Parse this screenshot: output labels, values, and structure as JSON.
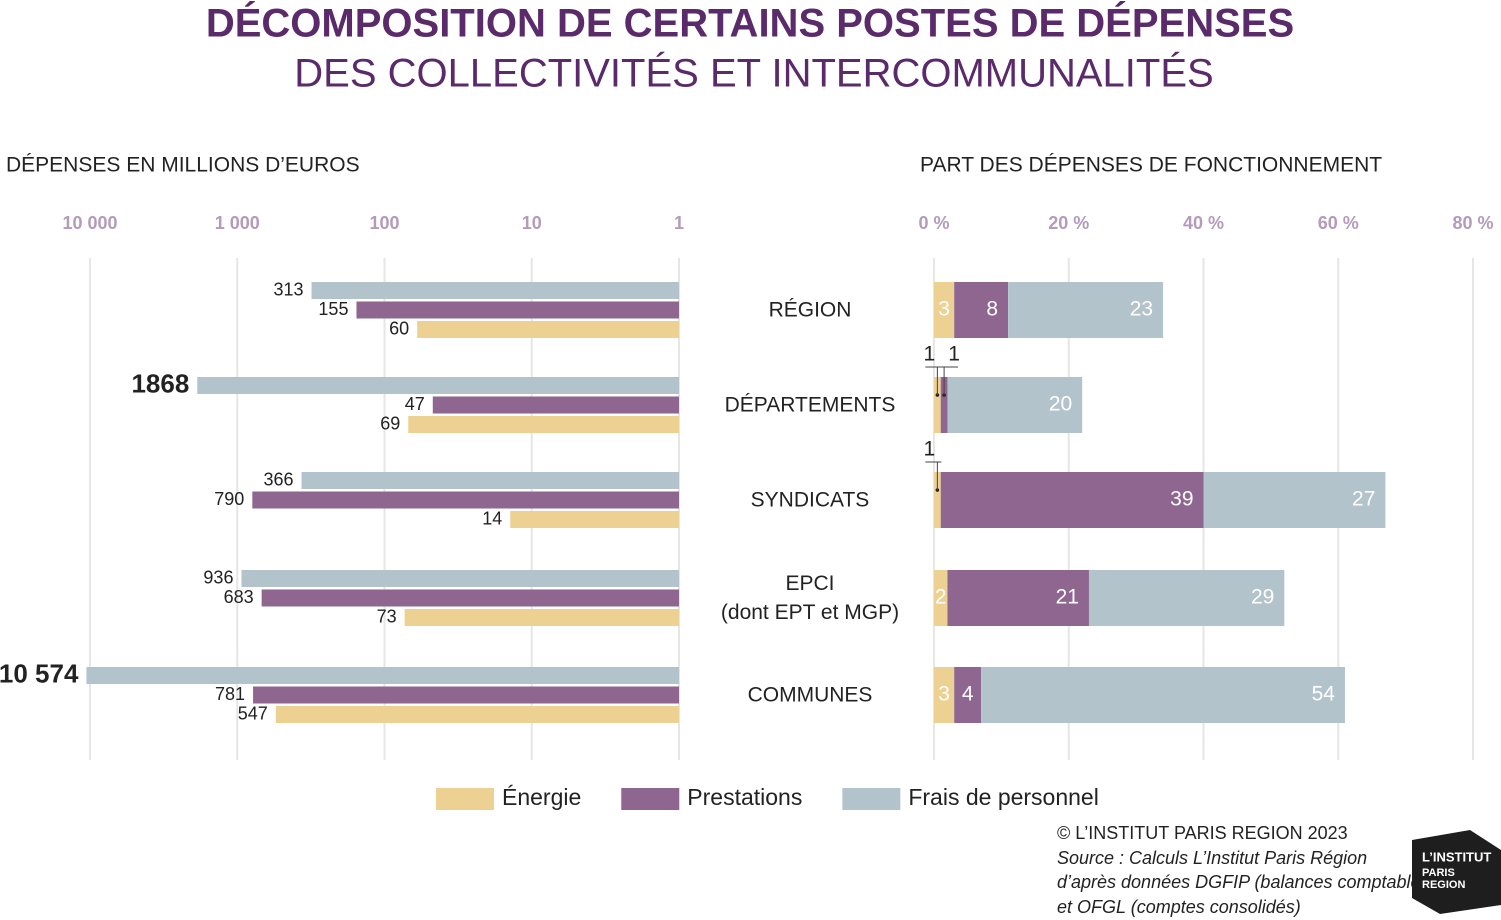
{
  "title": "DÉCOMPOSITION DE CERTAINS POSTES DE DÉPENSES",
  "subtitle": "DES COLLECTIVITÉS ET INTERCOMMUNALITÉS",
  "chart_data": [
    {
      "type": "bar",
      "orientation": "horizontal",
      "log": true,
      "reversed": true,
      "title": "DÉPENSES EN MILLIONS D’EUROS",
      "categories": [
        "RÉGION",
        "DÉPARTEMENTS",
        "SYNDICATS",
        "EPCI\n(dont EPT et MGP)",
        "COMMUNES"
      ],
      "series": [
        {
          "name": "Énergie",
          "color": "#ecd193",
          "values": [
            60,
            69,
            14,
            73,
            547
          ]
        },
        {
          "name": "Prestations",
          "color": "#8e6690",
          "values": [
            155,
            47,
            790,
            683,
            781
          ]
        },
        {
          "name": "Frais de personnel",
          "color": "#b3c3cb",
          "values": [
            313,
            1868,
            366,
            936,
            10574
          ],
          "value_labels": [
            "313",
            "1868",
            "366",
            "936",
            "10 574"
          ]
        }
      ],
      "xlim": [
        1,
        10000
      ],
      "xticks": [
        {
          "value": 10000,
          "label": "10 000"
        },
        {
          "value": 1000,
          "label": "1 000"
        },
        100,
        10,
        1
      ],
      "grid": true
    },
    {
      "type": "stacked_bar",
      "orientation": "horizontal",
      "title": "PART DES DÉPENSES DE FONCTIONNEMENT",
      "series": [
        {
          "color": "#ecd193",
          "values": [
            3,
            1,
            1,
            2,
            3
          ]
        },
        {
          "color": "#8e6690",
          "values": [
            8,
            1,
            39,
            21,
            4
          ]
        },
        {
          "color": "#b3c3cb",
          "values": [
            23,
            20,
            27,
            29,
            54
          ]
        }
      ],
      "xlim": [
        0,
        80
      ],
      "xticks": [
        {
          "value": 0,
          "label": "0 %"
        },
        {
          "value": 20,
          "label": "20 %"
        },
        {
          "value": 40,
          "label": "40 %"
        },
        {
          "value": 60,
          "label": "60 %"
        },
        {
          "value": 80,
          "label": "80 %"
        }
      ],
      "grid": true
    }
  ],
  "footer": {
    "copyright": "© L’INSTITUT PARIS REGION 2023",
    "source": [
      "Source : Calculs L’Institut Paris Région",
      "d’après données DGFIP (balances comptables)",
      "et OFGL (comptes consolidés)"
    ]
  },
  "logo": [
    "L’INSTITUT",
    "PARIS",
    "REGION"
  ]
}
